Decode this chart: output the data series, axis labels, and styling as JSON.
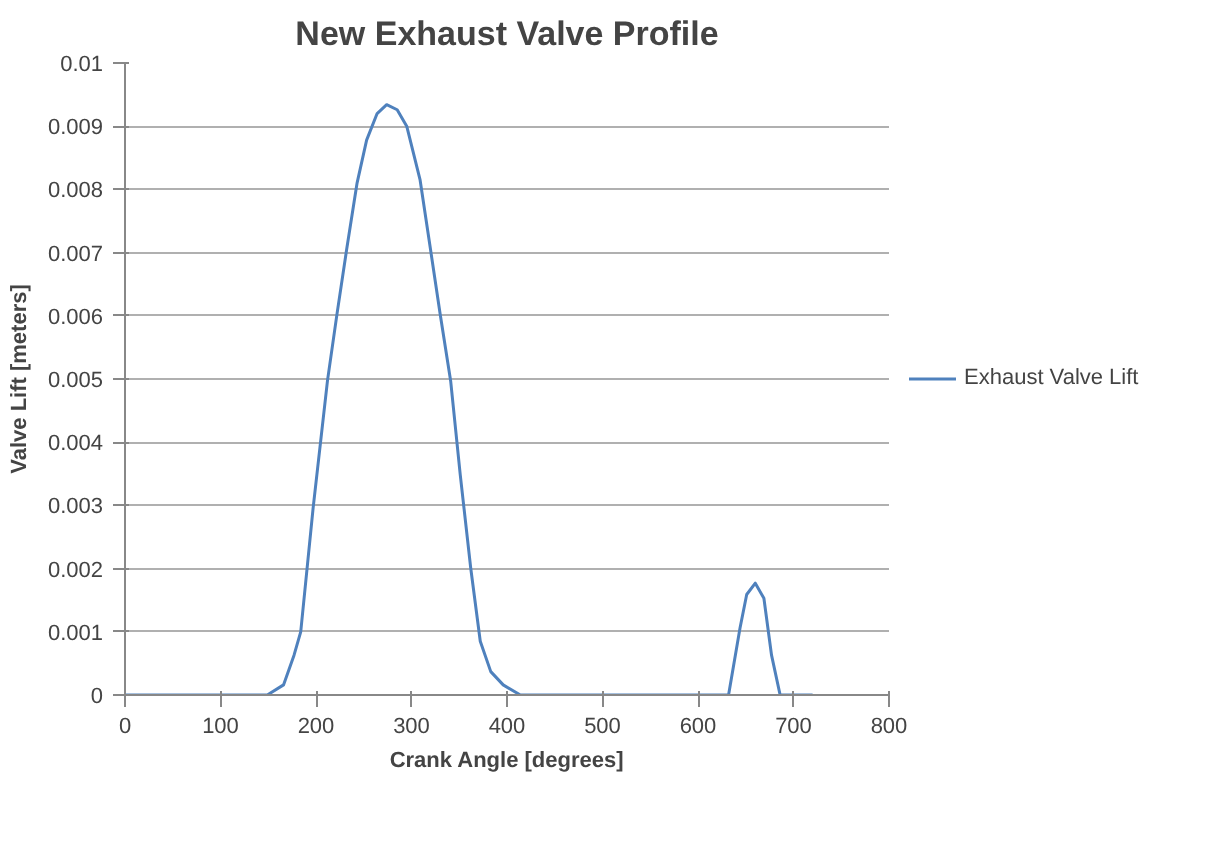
{
  "chart_data": {
    "type": "line",
    "title": "New Exhaust Valve Profile",
    "xlabel": "Crank Angle [degrees]",
    "ylabel": "Valve Lift [meters]",
    "xlim": [
      0,
      800
    ],
    "xticks": [
      0,
      100,
      200,
      300,
      400,
      500,
      600,
      700,
      800
    ],
    "ylim": [
      0,
      0.01
    ],
    "yticks": [
      0,
      0.001,
      0.002,
      0.003,
      0.004,
      0.005,
      0.006,
      0.007,
      0.008,
      0.009,
      0.01
    ],
    "grid": "y",
    "legend": "right",
    "marker": "none",
    "line_style": "solid",
    "series": [
      {
        "name": "Exhaust Valve Lift",
        "color": "#4f81bd",
        "x": [
          0,
          149,
          166,
          177,
          184,
          197,
          212,
          222,
          232,
          243,
          253,
          264,
          274,
          285,
          295,
          309,
          320,
          330,
          341,
          351,
          362,
          372,
          383,
          396,
          414,
          632,
          644,
          651,
          660,
          669,
          677,
          686,
          720
        ],
        "values": [
          0,
          0,
          0.00016,
          0.00063,
          0.001,
          0.00296,
          0.00497,
          0.00603,
          0.00704,
          0.0081,
          0.00878,
          0.0092,
          0.00934,
          0.00926,
          0.009,
          0.00815,
          0.00704,
          0.00603,
          0.00497,
          0.00349,
          0.00201,
          0.00085,
          0.00037,
          0.00016,
          0,
          0,
          0.00106,
          0.00159,
          0.00177,
          0.00153,
          0.00063,
          0,
          0
        ]
      }
    ]
  }
}
